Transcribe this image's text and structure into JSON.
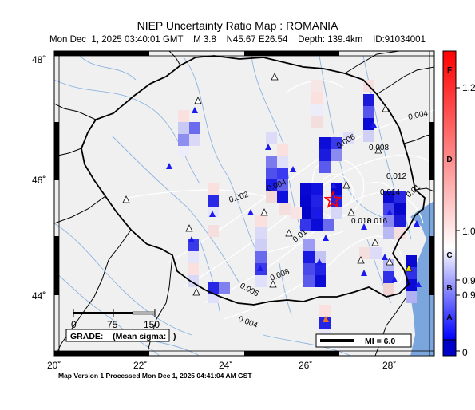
{
  "title": "NIEP Uncertainty Ratio Map : ROMANIA",
  "subtitle": {
    "datetime": "Mon Dec  1, 2025 03:40:01 GMT",
    "magnitude": "M 3.8",
    "location": "N45.67 E26.54",
    "depth": "Depth: 139.4km",
    "event_id": "ID:91034001"
  },
  "axes": {
    "lon_ticks": [
      "20˚",
      "22˚",
      "24˚",
      "26˚",
      "28˚"
    ],
    "lat_ticks": [
      "48˚",
      "46˚",
      "44˚"
    ]
  },
  "contour_labels": [
    "0.004",
    "0.006",
    "0.008",
    "0.012",
    "0.014",
    "0.01",
    "0.018",
    "0.016",
    "0.002",
    "0.004",
    "0.01",
    "0.008",
    "0.006",
    "0.004"
  ],
  "scale_bar": {
    "labels": [
      "0",
      "75",
      "150"
    ]
  },
  "grade_box": "GRADE: – (Mean sigma: –)",
  "mi_legend": "MI = 6.0",
  "colorbar": {
    "right_ticks": [
      "1.2",
      "1.0",
      "0.9",
      "0.9",
      "0"
    ],
    "grade_letters": [
      "F",
      "D",
      "C",
      "B",
      "A"
    ],
    "colors": {
      "top": "#ff0000",
      "mid": "#ffffff",
      "bottom": "#0000ff",
      "lowest": "#0000c8"
    }
  },
  "epicenter": {
    "lon": 26.54,
    "lat": 45.67
  },
  "footer": "Map Version 1 Processed Mon Dec  1, 2025 04:41:04 AM GST"
}
